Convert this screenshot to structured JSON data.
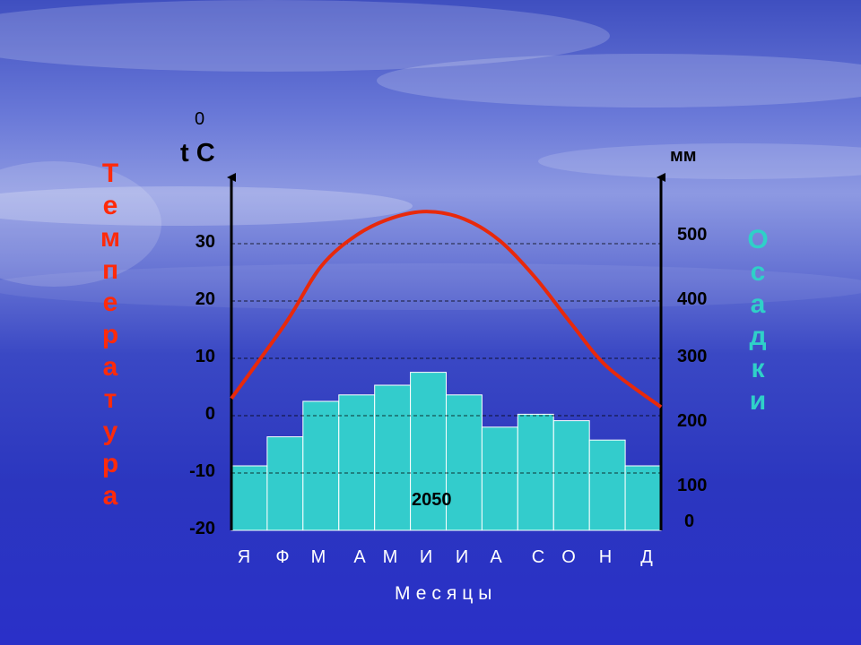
{
  "chart_data": {
    "type": "bar+line",
    "title": "",
    "temperature_axis": {
      "label": "t C",
      "degree_mark": "0",
      "ticks": [
        "30",
        "20",
        "10",
        "0",
        "-10",
        "-20"
      ],
      "tick_values": [
        30,
        20,
        10,
        0,
        -10,
        -20
      ],
      "ylim": [
        -20,
        35
      ]
    },
    "precipitation_axis": {
      "label": "мм",
      "ticks": [
        "500",
        "400",
        "300",
        "200",
        "100",
        "0"
      ],
      "ylim": [
        0,
        560
      ]
    },
    "categories": [
      "Я",
      "Ф",
      "М",
      "А",
      "М",
      "И",
      "И",
      "А",
      "С",
      "О",
      "Н",
      "Д"
    ],
    "series": [
      {
        "type": "bar",
        "axis": "precipitation",
        "color": "#33cccc",
        "values": [
          100,
          145,
          200,
          210,
          225,
          245,
          210,
          160,
          180,
          170,
          140,
          100
        ]
      },
      {
        "type": "line",
        "axis": "temperature",
        "color": "#e8290b",
        "values": [
          3,
          16,
          26,
          31.5,
          34.5,
          35.6,
          34.3,
          30.5,
          24,
          16,
          8.5,
          1.5
        ]
      }
    ],
    "annotation": "2050",
    "xlabel": "Месяцы",
    "left_vertical_label": "Температура",
    "right_vertical_label": "Осадки",
    "grid": "dashed horizontal lines at 30, 20, 10, 0, -10"
  }
}
